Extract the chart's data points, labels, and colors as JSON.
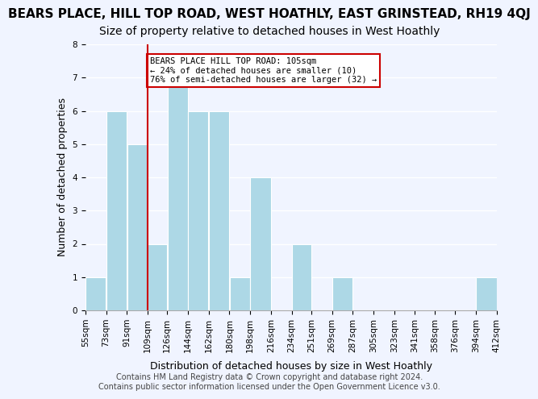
{
  "title": "BEARS PLACE, HILL TOP ROAD, WEST HOATHLY, EAST GRINSTEAD, RH19 4QJ",
  "subtitle": "Size of property relative to detached houses in West Hoathly",
  "xlabel": "Distribution of detached houses by size in West Hoathly",
  "ylabel": "Number of detached properties",
  "bin_edges": [
    55,
    73,
    91,
    109,
    126,
    144,
    162,
    180,
    198,
    216,
    234,
    251,
    269,
    287,
    305,
    323,
    341,
    358,
    376,
    394,
    412
  ],
  "bin_labels": [
    "55sqm",
    "73sqm",
    "91sqm",
    "109sqm",
    "126sqm",
    "144sqm",
    "162sqm",
    "180sqm",
    "198sqm",
    "216sqm",
    "234sqm",
    "251sqm",
    "269sqm",
    "287sqm",
    "305sqm",
    "323sqm",
    "341sqm",
    "358sqm",
    "376sqm",
    "394sqm",
    "412sqm"
  ],
  "counts": [
    1,
    6,
    5,
    2,
    7,
    6,
    6,
    1,
    4,
    0,
    2,
    0,
    1,
    0,
    0,
    0,
    0,
    0,
    0,
    1
  ],
  "bar_color": "#add8e6",
  "bar_edge_color": "white",
  "property_value": 105,
  "property_bin_index": 2,
  "vline_x": 109,
  "annotation_title": "BEARS PLACE HILL TOP ROAD: 105sqm",
  "annotation_line1": "← 24% of detached houses are smaller (10)",
  "annotation_line2": "76% of semi-detached houses are larger (32) →",
  "annotation_box_color": "white",
  "annotation_box_edge": "#cc0000",
  "vline_color": "#cc0000",
  "ylim": [
    0,
    8
  ],
  "footer1": "Contains HM Land Registry data © Crown copyright and database right 2024.",
  "footer2": "Contains public sector information licensed under the Open Government Licence v3.0.",
  "background_color": "#f0f4ff",
  "grid_color": "white",
  "title_fontsize": 11,
  "subtitle_fontsize": 10,
  "axis_label_fontsize": 9,
  "tick_fontsize": 7.5,
  "footer_fontsize": 7
}
